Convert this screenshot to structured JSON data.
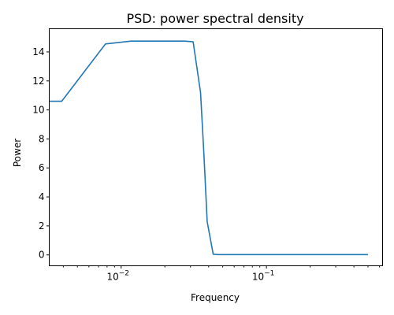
{
  "chart_data": {
    "type": "line",
    "title": "PSD: power spectral density",
    "xlabel": "Frequency",
    "ylabel": "Power",
    "xscale": "log",
    "xlim": [
      0.0032,
      0.63
    ],
    "ylim": [
      -0.75,
      15.6
    ],
    "grid": false,
    "x_ticks": [
      {
        "base": "10",
        "exp": "−2",
        "value": 0.01
      },
      {
        "base": "10",
        "exp": "−1",
        "value": 0.1
      }
    ],
    "y_ticks": [
      {
        "label": "0",
        "value": 0
      },
      {
        "label": "2",
        "value": 2
      },
      {
        "label": "4",
        "value": 4
      },
      {
        "label": "6",
        "value": 6
      },
      {
        "label": "8",
        "value": 8
      },
      {
        "label": "10",
        "value": 10
      },
      {
        "label": "12",
        "value": 12
      },
      {
        "label": "14",
        "value": 14
      }
    ],
    "series": [
      {
        "color": "#1f77b4",
        "x": [
          0.0032,
          0.0039,
          0.0078,
          0.0117,
          0.0156,
          0.0195,
          0.0234,
          0.0273,
          0.0313,
          0.0352,
          0.0371,
          0.0391,
          0.043,
          0.0469,
          0.1,
          0.2,
          0.3,
          0.5
        ],
        "y": [
          10.6,
          10.6,
          14.55,
          14.75,
          14.75,
          14.75,
          14.75,
          14.75,
          14.7,
          11.2,
          7.0,
          2.3,
          0.05,
          0.02,
          0.02,
          0.02,
          0.02,
          0.02
        ]
      }
    ]
  }
}
